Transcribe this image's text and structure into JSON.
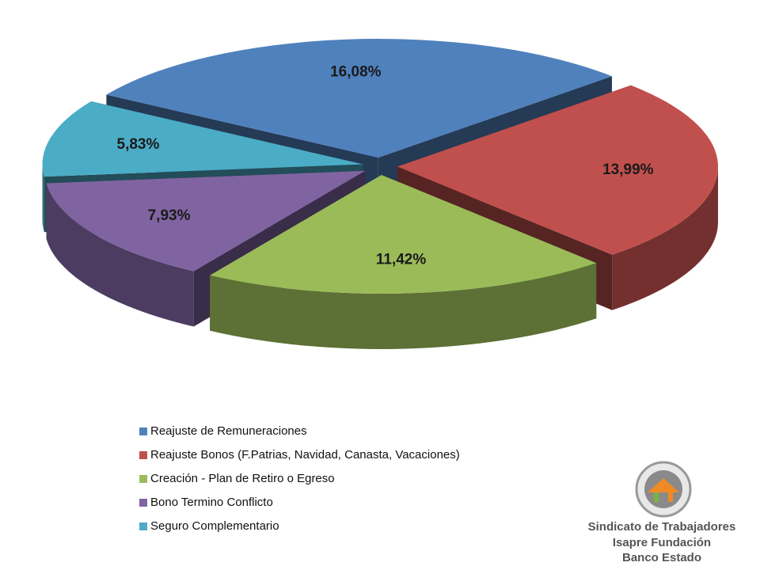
{
  "chart_data": {
    "type": "pie3d",
    "categories": [
      "Reajuste de Remuneraciones",
      "Reajuste Bonos (F.Patrias, Navidad, Canasta, Vacaciones)",
      "Creación - Plan de Retiro o Egreso",
      "Bono Termino Conflicto",
      "Seguro Complementario"
    ],
    "values": [
      16.08,
      13.99,
      11.42,
      7.93,
      5.83
    ],
    "value_labels": [
      "16,08%",
      "13,99%",
      "11,42%",
      "7,93%",
      "5,83%"
    ],
    "colors": [
      "#4f81bd",
      "#c0504d",
      "#9bbb59",
      "#8064a2",
      "#4bacc6"
    ],
    "legend": "bottom-left"
  },
  "logo": {
    "lines": [
      "Sindicato de Trabajadores",
      "Isapre Fundación",
      "Banco Estado"
    ]
  }
}
